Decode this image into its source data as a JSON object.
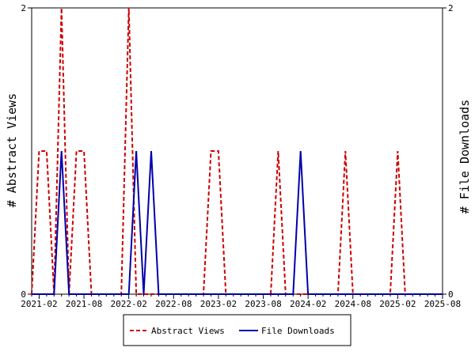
{
  "chart_data": {
    "type": "line",
    "title": "",
    "x": [
      "2021-01",
      "2021-02",
      "2021-03",
      "2021-04",
      "2021-05",
      "2021-06",
      "2021-07",
      "2021-08",
      "2021-09",
      "2021-10",
      "2021-11",
      "2021-12",
      "2022-01",
      "2022-02",
      "2022-03",
      "2022-04",
      "2022-05",
      "2022-06",
      "2022-07",
      "2022-08",
      "2022-09",
      "2022-10",
      "2022-11",
      "2022-12",
      "2023-01",
      "2023-02",
      "2023-03",
      "2023-04",
      "2023-05",
      "2023-06",
      "2023-07",
      "2023-08",
      "2023-09",
      "2023-10",
      "2023-11",
      "2023-12",
      "2024-01",
      "2024-02",
      "2024-03",
      "2024-04",
      "2024-05",
      "2024-06",
      "2024-07",
      "2024-08",
      "2024-09",
      "2024-10",
      "2024-11",
      "2024-12",
      "2025-01",
      "2025-02",
      "2025-03",
      "2025-04",
      "2025-05",
      "2025-06",
      "2025-07",
      "2025-08"
    ],
    "x_ticks": [
      "2021-02",
      "2021-08",
      "2022-02",
      "2022-08",
      "2023-02",
      "2023-08",
      "2024-02",
      "2024-08",
      "2025-02",
      "2025-08"
    ],
    "ylabel_left": "# Abstract Views",
    "ylabel_right": "# File Downloads",
    "ylim": [
      0,
      2
    ],
    "y_ticks": [
      0,
      2
    ],
    "y_ticks_right": [
      0,
      2
    ],
    "legend_position": "bottom",
    "series": [
      {
        "name": "Abstract Views",
        "axis": "left",
        "color": "#cc0000",
        "style": "dashed",
        "values": [
          0,
          1,
          1,
          0,
          2,
          0,
          1,
          1,
          0,
          0,
          0,
          0,
          0,
          2,
          0,
          0,
          0,
          0,
          0,
          0,
          0,
          0,
          0,
          0,
          1,
          1,
          0,
          0,
          0,
          0,
          0,
          0,
          0,
          1,
          0,
          0,
          0,
          0,
          0,
          0,
          0,
          0,
          1,
          0,
          0,
          0,
          0,
          0,
          0,
          1,
          0,
          0,
          0,
          0,
          0,
          0
        ]
      },
      {
        "name": "File Downloads",
        "axis": "right",
        "color": "#0000aa",
        "style": "solid",
        "values": [
          0,
          0,
          0,
          0,
          1,
          0,
          0,
          0,
          0,
          0,
          0,
          0,
          0,
          0,
          1,
          0,
          1,
          0,
          0,
          0,
          0,
          0,
          0,
          0,
          0,
          0,
          0,
          0,
          0,
          0,
          0,
          0,
          0,
          0,
          0,
          0,
          1,
          0,
          0,
          0,
          0,
          0,
          0,
          0,
          0,
          0,
          0,
          0,
          0,
          0,
          0,
          0,
          0,
          0,
          0,
          0
        ]
      }
    ]
  }
}
